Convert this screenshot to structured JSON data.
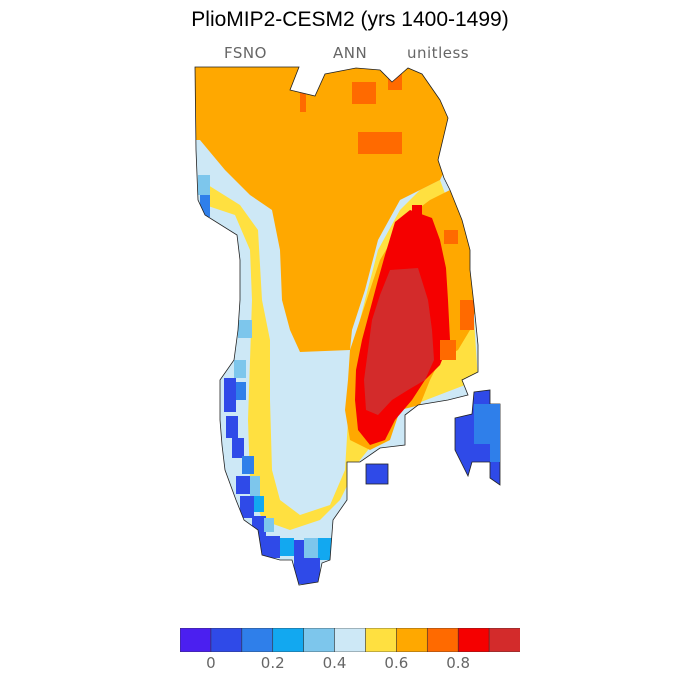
{
  "title": "PlioMIP2-CESM2 (yrs 1400-1499)",
  "subtitle": {
    "left": "FSNO",
    "center": "ANN",
    "right": "unitless"
  },
  "colorbar": {
    "colors": [
      "#4B1FF0",
      "#2F4AE8",
      "#2F7FEA",
      "#12A8F0",
      "#7DC6EC",
      "#CDE8F6",
      "#FFE040",
      "#FFA800",
      "#FF6A00",
      "#F50000",
      "#D32B2B"
    ],
    "tick_labels": [
      "0",
      "0.2",
      "0.4",
      "0.6",
      "0.8"
    ],
    "tick_values": [
      0,
      0.2,
      0.4,
      0.6,
      0.8
    ],
    "range": [
      -0.1,
      1.0
    ]
  },
  "map": {
    "variable": "FSNO",
    "region": "Greenland",
    "dominant_values": {
      "north_interior": 0.65,
      "east_central": 0.95,
      "south_interior": 0.55,
      "margins": 0.3
    }
  }
}
